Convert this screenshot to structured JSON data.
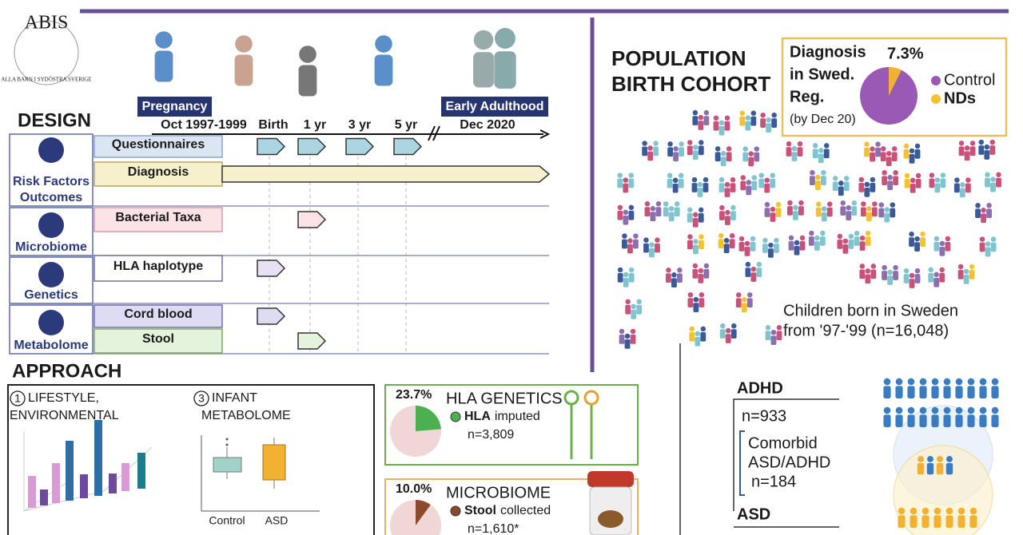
{
  "header": {
    "logo": "ABIS",
    "logo_subtitle": "ALLA BARN I SYDÖSTRA SVERIGE"
  },
  "design": {
    "title": "DESIGN",
    "milestones": [
      "Pregnancy",
      "Early Adulthood"
    ],
    "timeline": [
      "Oct 1997-1999",
      "Birth",
      "1 yr",
      "3 yr",
      "5 yr",
      "Dec 2020"
    ],
    "groups": [
      {
        "label_lines": [
          "Risk Factors",
          "Outcomes"
        ],
        "items": [
          "Questionnaires",
          "Diagnosis"
        ]
      },
      {
        "label_lines": [
          "Microbiome"
        ],
        "items": [
          "Bacterial Taxa"
        ]
      },
      {
        "label_lines": [
          "Genetics"
        ],
        "items": [
          "HLA haplotype"
        ]
      },
      {
        "label_lines": [
          "Metabolome"
        ],
        "items": [
          "Cord blood",
          "Stool"
        ]
      }
    ]
  },
  "population": {
    "title_lines": [
      "POPULATION",
      "BIRTH COHORT"
    ],
    "legend": {
      "title_lines": [
        "Diagnosis",
        "in Swed.",
        "Reg."
      ],
      "note": "(by Dec 20)",
      "nd_share": {
        "value": 7.3,
        "label": "7.3%"
      },
      "categories": [
        "Control",
        "NDs"
      ]
    },
    "caption_lines": [
      "Children born in Sweden",
      "from '97-'99 (n=16,048)"
    ]
  },
  "subgroups": {
    "adhd": {
      "label": "ADHD",
      "count": "n=933"
    },
    "comorbid_lines": [
      "Comorbid",
      "ASD/ADHD",
      "n=184"
    ],
    "asd": {
      "label": "ASD"
    }
  },
  "approach": {
    "title": "APPROACH",
    "lifestyle": {
      "number": "1",
      "lines": [
        "LIFESTYLE,",
        "ENVIRONMENTAL"
      ]
    },
    "metabolome": {
      "number": "3",
      "lines": [
        "INFANT",
        "METABOLOME"
      ],
      "groups": [
        "Control",
        "ASD"
      ]
    },
    "hla": {
      "share": {
        "value": 23.7,
        "label": "23.7%"
      },
      "title": "HLA GENETICS",
      "detail_bold": "HLA",
      "detail": "imputed",
      "count": "n=3,809"
    },
    "microbiome": {
      "share": {
        "value": 10.0,
        "label": "10.0%"
      },
      "title": "MICROBIOME",
      "detail_bold": "Stool",
      "detail": "collected",
      "count": "n=1,610*"
    }
  }
}
